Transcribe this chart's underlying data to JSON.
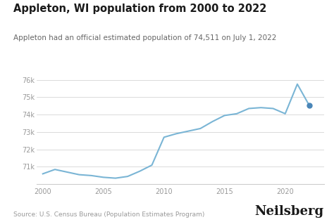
{
  "title": "Appleton, WI population from 2000 to 2022",
  "subtitle": "Appleton had an official estimated population of 74,511 on July 1, 2022",
  "source": "Source: U.S. Census Bureau (Population Estimates Program)",
  "branding": "Neilsberg",
  "years": [
    2000,
    2001,
    2002,
    2003,
    2004,
    2005,
    2006,
    2007,
    2008,
    2009,
    2010,
    2011,
    2012,
    2013,
    2014,
    2015,
    2016,
    2017,
    2018,
    2019,
    2020,
    2021,
    2022
  ],
  "population": [
    70600,
    70850,
    70700,
    70550,
    70500,
    70400,
    70350,
    70450,
    70750,
    71100,
    72700,
    72900,
    73050,
    73200,
    73600,
    73950,
    74050,
    74350,
    74400,
    74350,
    74050,
    75750,
    74511
  ],
  "line_color": "#7ab5d5",
  "dot_color": "#4a86b8",
  "background_color": "#ffffff",
  "title_fontsize": 10.5,
  "subtitle_fontsize": 7.5,
  "source_fontsize": 6.5,
  "branding_fontsize": 13,
  "ylim": [
    70000,
    76500
  ],
  "yticks": [
    71000,
    72000,
    73000,
    74000,
    75000,
    76000
  ],
  "xticks": [
    2000,
    2005,
    2010,
    2015,
    2020
  ],
  "axis_color": "#cccccc",
  "tick_color": "#999999",
  "title_color": "#1a1a1a",
  "subtitle_color": "#666666",
  "source_color": "#999999"
}
